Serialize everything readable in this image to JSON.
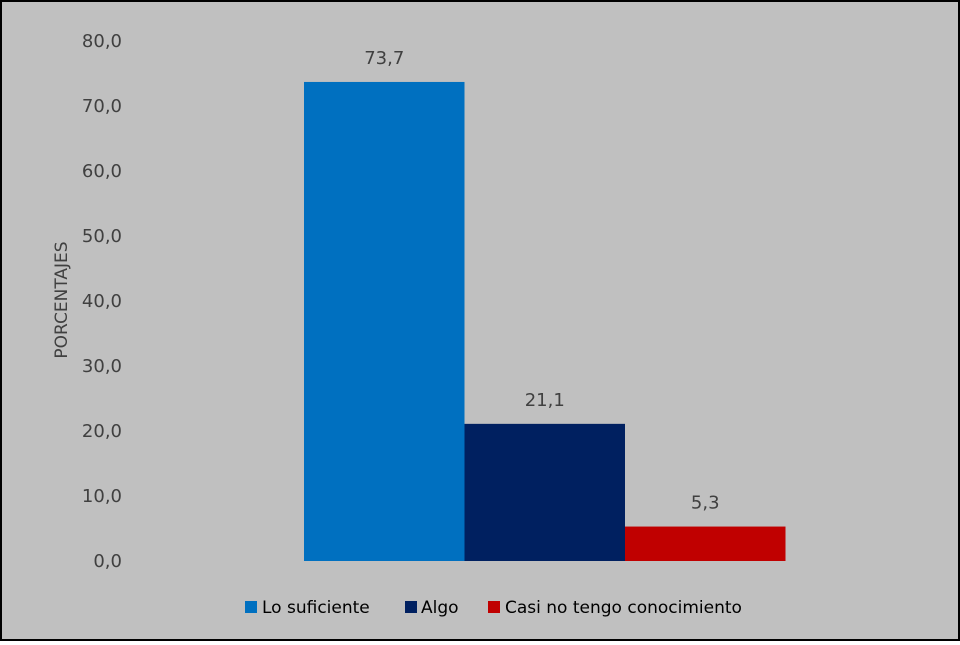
{
  "chart_data": {
    "type": "bar",
    "title": "",
    "xlabel": "",
    "ylabel": "PORCENTAJES",
    "ylim": [
      0,
      80
    ],
    "y_tick_step": 10,
    "grid": false,
    "legend_position": "bottom",
    "background_color": "#c0c0c0",
    "border_color": "#000000",
    "series": [
      {
        "name": "Lo suficiente",
        "value": 73.7,
        "label": "73,7",
        "color": "#0070c0"
      },
      {
        "name": "Algo",
        "value": 21.1,
        "label": "21,1",
        "color": "#002060"
      },
      {
        "name": "Casi no tengo conocimiento",
        "value": 5.3,
        "label": "5,3",
        "color": "#c00000"
      }
    ],
    "y_ticks": [
      "0,0",
      "10,0",
      "20,0",
      "30,0",
      "40,0",
      "50,0",
      "60,0",
      "70,0",
      "80,0"
    ]
  }
}
